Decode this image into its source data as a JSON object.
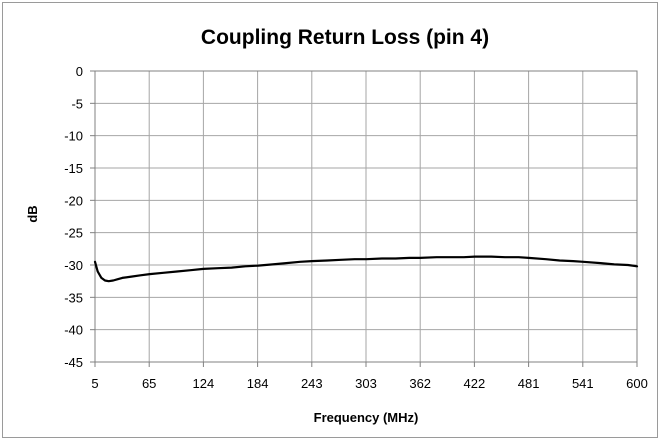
{
  "chart_data": {
    "type": "line",
    "title": "Coupling Return Loss (pin 4)",
    "xlabel": "Frequency (MHz)",
    "ylabel": "dB",
    "x_tick_labels": [
      "5",
      "65",
      "124",
      "184",
      "243",
      "303",
      "362",
      "422",
      "481",
      "541",
      "600"
    ],
    "y_tick_labels": [
      "0",
      "-5",
      "-10",
      "-15",
      "-20",
      "-25",
      "-30",
      "-35",
      "-40",
      "-45"
    ],
    "xlim": [
      5,
      600
    ],
    "ylim": [
      -45,
      0
    ],
    "grid": true,
    "legend": "none",
    "series": [
      {
        "color": "#000000",
        "x": [
          5,
          8,
          12,
          16,
          20,
          25,
          30,
          35,
          45,
          55,
          65,
          80,
          95,
          110,
          124,
          140,
          155,
          170,
          184,
          200,
          215,
          230,
          243,
          260,
          275,
          290,
          303,
          320,
          335,
          350,
          362,
          380,
          395,
          410,
          422,
          440,
          455,
          470,
          481,
          500,
          515,
          530,
          541,
          560,
          575,
          590,
          600
        ],
        "y": [
          -29.5,
          -31.0,
          -32.0,
          -32.4,
          -32.5,
          -32.4,
          -32.2,
          -32.0,
          -31.8,
          -31.6,
          -31.4,
          -31.2,
          -31.0,
          -30.8,
          -30.6,
          -30.5,
          -30.4,
          -30.2,
          -30.1,
          -29.9,
          -29.7,
          -29.5,
          -29.4,
          -29.3,
          -29.2,
          -29.1,
          -29.1,
          -29.0,
          -29.0,
          -28.9,
          -28.9,
          -28.8,
          -28.8,
          -28.8,
          -28.7,
          -28.7,
          -28.8,
          -28.8,
          -28.9,
          -29.1,
          -29.3,
          -29.4,
          -29.5,
          -29.7,
          -29.9,
          -30.0,
          -30.2
        ]
      }
    ]
  },
  "colors": {
    "grid": "#a6a6a6",
    "line": "#000000",
    "frame": "#9a9a9a"
  }
}
